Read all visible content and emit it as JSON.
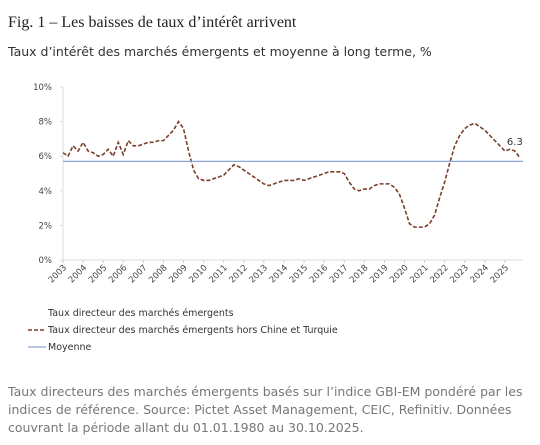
{
  "chart_data": {
    "type": "line",
    "title": "Fig. 1 – Les baisses de taux d’intérêt arrivent",
    "subtitle": "Taux d’intérêt des marchés émergents et moyenne à long terme, %",
    "footnote": [
      "Taux directeurs des marchés émergents basés sur l’indice GBI-EM pondéré par les",
      "indices de référence. Source: Pictet Asset Management, CEIC, Refinitiv. Données",
      "couvrant la période allant du 01.01.1980 au 30.10.2025."
    ],
    "x": [
      2003,
      2003.25,
      2003.5,
      2003.75,
      2004,
      2004.25,
      2004.5,
      2004.75,
      2005,
      2005.25,
      2005.5,
      2005.75,
      2006,
      2006.25,
      2006.5,
      2006.75,
      2007,
      2007.25,
      2007.5,
      2007.75,
      2008,
      2008.25,
      2008.5,
      2008.75,
      2009,
      2009.25,
      2009.5,
      2009.75,
      2010,
      2010.25,
      2010.5,
      2010.75,
      2011,
      2011.25,
      2011.5,
      2011.75,
      2012,
      2012.25,
      2012.5,
      2012.75,
      2013,
      2013.25,
      2013.5,
      2013.75,
      2014,
      2014.25,
      2014.5,
      2014.75,
      2015,
      2015.25,
      2015.5,
      2015.75,
      2016,
      2016.25,
      2016.5,
      2016.75,
      2017,
      2017.25,
      2017.5,
      2017.75,
      2018,
      2018.25,
      2018.5,
      2018.75,
      2019,
      2019.25,
      2019.5,
      2019.75,
      2020,
      2020.25,
      2020.5,
      2020.75,
      2021,
      2021.25,
      2021.5,
      2021.75,
      2022,
      2022.25,
      2022.5,
      2022.75,
      2023,
      2023.25,
      2023.5,
      2023.75,
      2024,
      2024.25,
      2024.5,
      2024.75,
      2025,
      2025.25,
      2025.5,
      2025.75
    ],
    "series": [
      {
        "name": "Taux directeur des marchés émergents"
      },
      {
        "name": "Taux directeur des marchés émergents hors Chine et Turquie",
        "color": "#7b3f2a",
        "dashed": true,
        "values": [
          6.2,
          6.0,
          6.6,
          6.3,
          6.8,
          6.3,
          6.2,
          6.0,
          6.1,
          6.4,
          6.0,
          6.8,
          6.1,
          6.9,
          6.6,
          6.6,
          6.7,
          6.8,
          6.8,
          6.9,
          6.9,
          7.2,
          7.5,
          8.0,
          7.6,
          6.3,
          5.2,
          4.7,
          4.6,
          4.6,
          4.7,
          4.8,
          4.9,
          5.2,
          5.5,
          5.4,
          5.2,
          5.0,
          4.8,
          4.6,
          4.4,
          4.3,
          4.4,
          4.5,
          4.6,
          4.6,
          4.6,
          4.7,
          4.6,
          4.7,
          4.8,
          4.9,
          5.0,
          5.1,
          5.1,
          5.1,
          5.0,
          4.5,
          4.1,
          4.0,
          4.1,
          4.1,
          4.3,
          4.4,
          4.4,
          4.4,
          4.2,
          3.8,
          3.0,
          2.1,
          1.9,
          1.9,
          1.9,
          2.1,
          2.6,
          3.6,
          4.5,
          5.6,
          6.6,
          7.2,
          7.6,
          7.8,
          7.9,
          7.7,
          7.5,
          7.2,
          6.9,
          6.6,
          6.3,
          6.4,
          6.3,
          5.9
        ]
      },
      {
        "name": "Moyenne",
        "color": "#8aa6d6",
        "value": 5.7
      }
    ],
    "annotations": [
      {
        "x": 2025,
        "y": 6.3
      }
    ],
    "xlim": [
      2003,
      2025.9
    ],
    "xticks": [
      2003,
      2004,
      2005,
      2006,
      2007,
      2008,
      2009,
      2010,
      2011,
      2012,
      2013,
      2014,
      2015,
      2016,
      2017,
      2018,
      2019,
      2020,
      2021,
      2022,
      2023,
      2024,
      2025
    ],
    "ylim": [
      0,
      10
    ],
    "yticks": [
      {
        "value": 0,
        "label": "0%"
      },
      {
        "value": 2,
        "label": "2%"
      },
      {
        "value": 4,
        "label": "4%"
      },
      {
        "value": 6,
        "label": "6%"
      },
      {
        "value": 8,
        "label": "8%"
      },
      {
        "value": 10,
        "label": "10%"
      }
    ]
  }
}
